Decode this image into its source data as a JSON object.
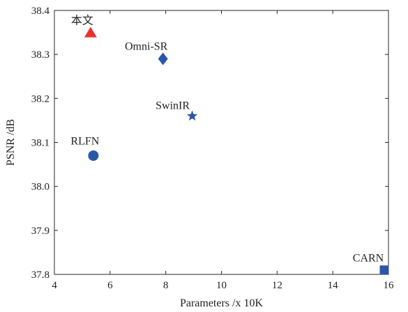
{
  "chart_data": {
    "type": "scatter",
    "title": "",
    "xlabel": "Parameters /x 10K",
    "ylabel": "PSNR /dB",
    "xlim": [
      4,
      16
    ],
    "ylim": [
      37.8,
      38.4
    ],
    "xticks": [
      4,
      6,
      8,
      10,
      12,
      14,
      16
    ],
    "yticks": [
      37.8,
      37.9,
      38.0,
      38.1,
      38.2,
      38.3,
      38.4
    ],
    "xtick_labels": [
      "4",
      "6",
      "8",
      "10",
      "12",
      "14",
      "16"
    ],
    "ytick_labels": [
      "37.8",
      "37.9",
      "38.0",
      "38.1",
      "38.2",
      "38.3",
      "38.4"
    ],
    "grid": false,
    "points": [
      {
        "label": "本文",
        "x": 5.3,
        "y": 38.35,
        "marker": "triangle",
        "color": "#e8312f"
      },
      {
        "label": "Omni-SR",
        "x": 7.9,
        "y": 38.29,
        "marker": "diamond",
        "color": "#2a56a6"
      },
      {
        "label": "SwinIR",
        "x": 8.95,
        "y": 38.16,
        "marker": "star",
        "color": "#2a56a6"
      },
      {
        "label": "RLFN",
        "x": 5.4,
        "y": 38.07,
        "marker": "circle",
        "color": "#2a56a6"
      },
      {
        "label": "CARN",
        "x": 15.85,
        "y": 37.81,
        "marker": "square",
        "color": "#2a56a6"
      }
    ]
  }
}
